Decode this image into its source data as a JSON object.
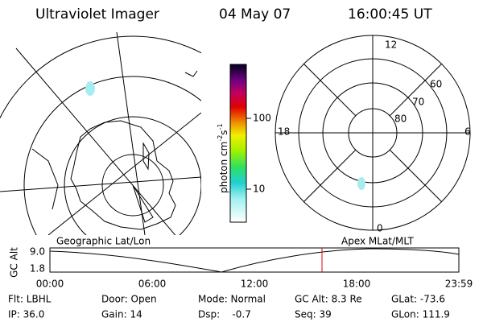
{
  "header": {
    "title": "Ultraviolet Imager",
    "date": "04 May 07",
    "time": "16:00:45 UT"
  },
  "geographic_map": {
    "label": "Geographic Lat/Lon"
  },
  "apex_map": {
    "label": "Apex MLat/MLT",
    "mlt_labels": [
      "12",
      "18",
      "6",
      "0"
    ],
    "lat_labels": [
      "60",
      "70",
      "80"
    ]
  },
  "colorbar": {
    "unit": [
      "photon cm",
      "-2",
      "s",
      "-1"
    ],
    "ticks": [
      "100",
      "10"
    ]
  },
  "altitude_plot": {
    "axis_label": "GC Alt",
    "yticks": [
      "9.0",
      "1.8"
    ],
    "xticks": [
      "00:00",
      "06:00",
      "12:00",
      "18:00",
      "23:59"
    ]
  },
  "footer": {
    "rows": [
      [
        "Flt: LBHL",
        "Door: Open",
        "Mode: Normal",
        "GC Alt: 8.3 Re",
        "GLat: -73.6"
      ],
      [
        "IP: 36.0",
        "Gain: 14",
        "Dsp:    -0.7",
        "Seq: 39",
        "GLon: 111.9"
      ]
    ]
  }
}
